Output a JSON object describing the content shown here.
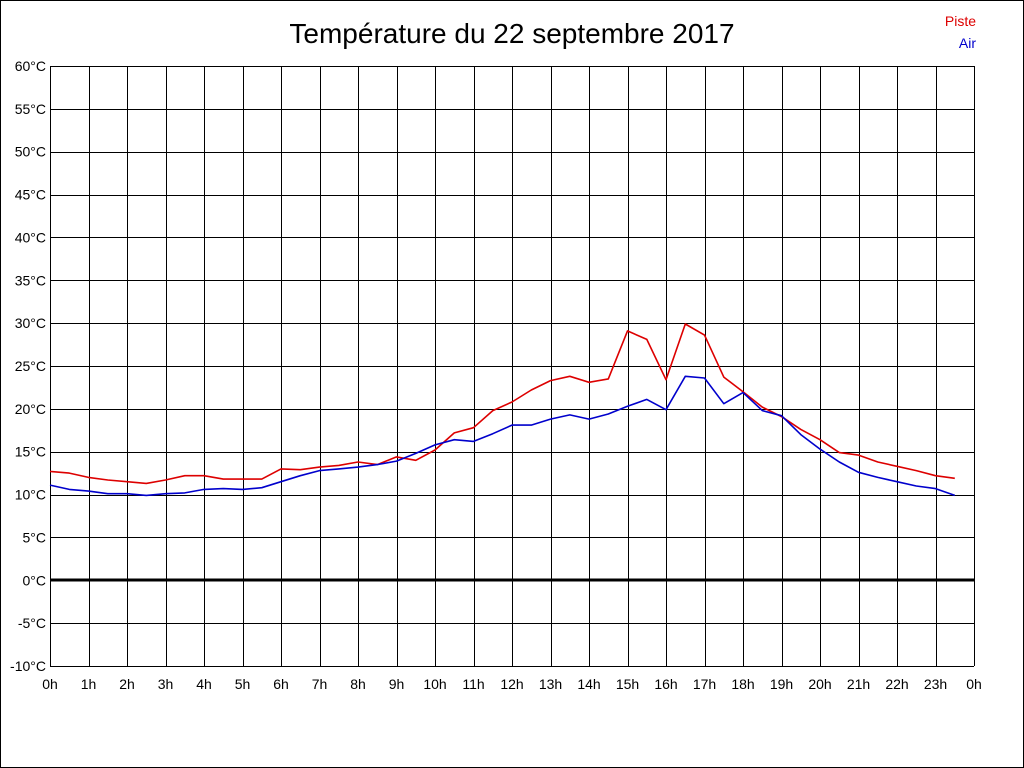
{
  "chart_data": {
    "type": "line",
    "title": "Température du 22 septembre 2017",
    "xlabel": "",
    "ylabel": "",
    "x_ticks": [
      "0h",
      "1h",
      "2h",
      "3h",
      "4h",
      "5h",
      "6h",
      "7h",
      "8h",
      "9h",
      "10h",
      "11h",
      "12h",
      "13h",
      "14h",
      "15h",
      "16h",
      "17h",
      "18h",
      "19h",
      "20h",
      "21h",
      "22h",
      "23h",
      "0h"
    ],
    "y_ticks": [
      "60°C",
      "55°C",
      "50°C",
      "45°C",
      "40°C",
      "35°C",
      "30°C",
      "25°C",
      "20°C",
      "15°C",
      "10°C",
      "5°C",
      "0°C",
      "-5°C",
      "-10°C"
    ],
    "xlim": [
      0,
      24
    ],
    "ylim": [
      -10,
      60
    ],
    "grid": true,
    "zero_line": true,
    "legend_position": "top-right",
    "x": [
      0,
      0.5,
      1,
      1.5,
      2,
      2.5,
      3,
      3.5,
      4,
      4.5,
      5,
      5.5,
      6,
      6.5,
      7,
      7.5,
      8,
      8.5,
      9,
      9.5,
      10,
      10.5,
      11,
      11.5,
      12,
      12.5,
      13,
      13.5,
      14,
      14.5,
      15,
      15.5,
      16,
      16.5,
      17,
      17.5,
      18,
      18.5,
      19,
      19.5,
      20,
      20.5,
      21,
      21.5,
      22,
      22.5,
      23,
      23.5
    ],
    "series": [
      {
        "name": "Piste",
        "color": "#dd0000",
        "values": [
          12.7,
          12.5,
          12.0,
          11.7,
          11.5,
          11.3,
          11.7,
          12.2,
          12.2,
          11.8,
          11.8,
          11.8,
          13.0,
          12.9,
          13.2,
          13.4,
          13.8,
          13.5,
          14.4,
          14.0,
          15.2,
          17.2,
          17.8,
          19.8,
          20.8,
          22.2,
          23.3,
          23.8,
          23.1,
          23.5,
          29.1,
          28.1,
          23.4,
          29.9,
          28.6,
          23.7,
          22.0,
          20.2,
          19.1,
          17.6,
          16.4,
          14.9,
          14.6,
          13.8,
          13.3,
          12.8,
          12.2,
          11.9
        ]
      },
      {
        "name": "Air",
        "color": "#0000cc",
        "values": [
          11.1,
          10.6,
          10.4,
          10.1,
          10.1,
          9.9,
          10.1,
          10.2,
          10.6,
          10.7,
          10.6,
          10.8,
          11.5,
          12.2,
          12.8,
          13.0,
          13.2,
          13.5,
          13.9,
          14.8,
          15.8,
          16.4,
          16.2,
          17.1,
          18.1,
          18.1,
          18.8,
          19.3,
          18.8,
          19.4,
          20.3,
          21.1,
          19.9,
          23.8,
          23.6,
          20.6,
          21.9,
          19.8,
          19.2,
          17.0,
          15.3,
          13.8,
          12.6,
          12.0,
          11.5,
          11.0,
          10.7,
          9.9
        ]
      }
    ]
  }
}
